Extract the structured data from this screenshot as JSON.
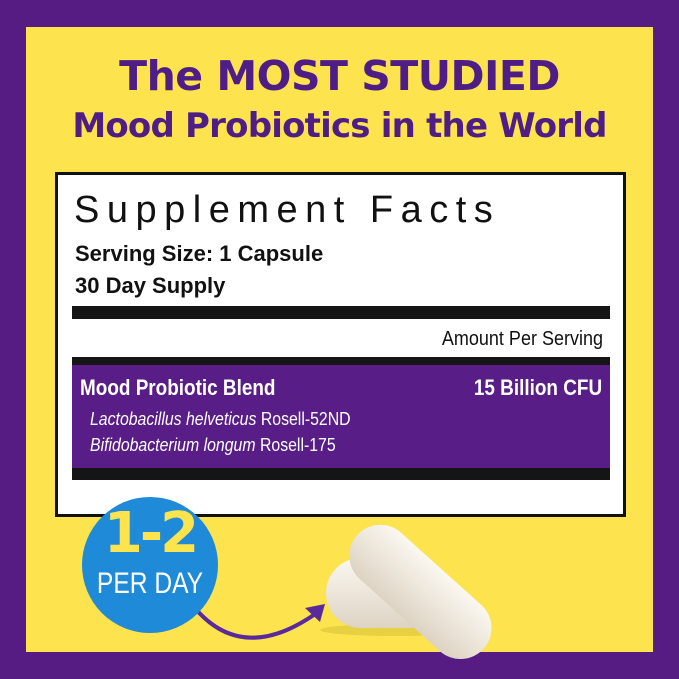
{
  "headline": {
    "line1": "The MOST STUDIED",
    "line2": "Mood Probiotics in the World"
  },
  "label": {
    "title": "Supplement Facts",
    "serving_size": "Serving Size: 1 Capsule",
    "supply": "30 Day Supply",
    "amount_header": "Amount Per Serving",
    "blend_name": "Mood Probiotic Blend",
    "blend_amount": "15 Billion CFU",
    "strains": [
      {
        "species": "Lactobacillus helveticus",
        "strain": "Rosell-52ND"
      },
      {
        "species": "Bifidobacterium longum",
        "strain": "Rosell-175"
      }
    ]
  },
  "badge": {
    "count": "1-2",
    "unit": "PER DAY"
  },
  "colors": {
    "purple": "#561c84",
    "yellow": "#fde34e",
    "blue": "#1e8ad8",
    "capsule": "#f3ede2"
  }
}
